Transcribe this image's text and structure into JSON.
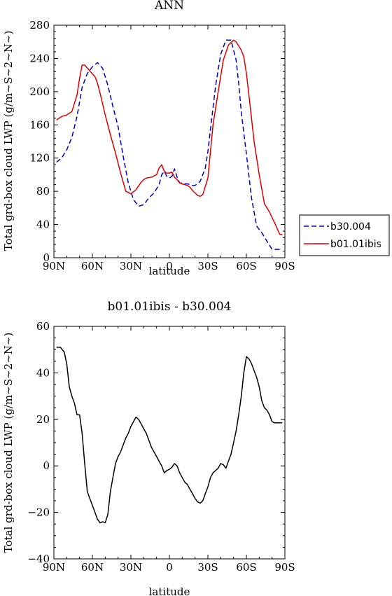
{
  "chart_data": [
    {
      "type": "line",
      "title": "ANN",
      "xlabel": "latitude",
      "ylabel": "Total grd-box cloud LWP (g/m~S~2~N~)",
      "xlim": [
        90,
        -90
      ],
      "ylim": [
        0,
        280
      ],
      "xticks": [
        90,
        60,
        30,
        0,
        -30,
        -60,
        -90
      ],
      "xtick_labels": [
        "90N",
        "60N",
        "30N",
        "0",
        "30S",
        "60S",
        "90S"
      ],
      "yticks": [
        0,
        40,
        80,
        120,
        160,
        200,
        240,
        280
      ],
      "ytick_labels": [
        "0",
        "40",
        "80",
        "120",
        "160",
        "200",
        "240",
        "280"
      ],
      "legend_position": "right",
      "series": [
        {
          "name": "b30.004",
          "color": "#0000cc",
          "style": "dashed",
          "x": [
            88,
            84,
            80,
            76,
            72,
            68,
            64,
            60,
            56,
            52,
            48,
            44,
            40,
            36,
            32,
            28,
            24,
            20,
            16,
            12,
            8,
            6,
            4,
            2,
            0,
            -2,
            -4,
            -6,
            -8,
            -10,
            -12,
            -14,
            -16,
            -18,
            -20,
            -24,
            -28,
            -30,
            -32,
            -36,
            -40,
            -44,
            -48,
            -52,
            -54,
            -56,
            -60,
            -64,
            -68,
            -72,
            -76,
            -80,
            -84,
            -88
          ],
          "y": [
            115,
            120,
            130,
            145,
            170,
            205,
            222,
            230,
            235,
            228,
            208,
            182,
            158,
            122,
            90,
            70,
            62,
            64,
            72,
            78,
            88,
            100,
            104,
            98,
            96,
            98,
            107,
            97,
            90,
            90,
            89,
            89,
            88,
            87,
            87,
            92,
            108,
            128,
            155,
            207,
            245,
            262,
            262,
            238,
            210,
            175,
            125,
            72,
            38,
            30,
            20,
            10,
            10,
            10
          ]
        },
        {
          "name": "b01.01ibis",
          "color": "#dd0000",
          "style": "solid",
          "x": [
            88,
            84,
            80,
            76,
            72,
            70,
            68,
            66,
            62,
            58,
            56,
            54,
            50,
            46,
            42,
            38,
            34,
            30,
            26,
            22,
            20,
            18,
            14,
            10,
            8,
            6,
            4,
            2,
            0,
            -2,
            -4,
            -6,
            -8,
            -10,
            -12,
            -14,
            -16,
            -18,
            -20,
            -22,
            -24,
            -26,
            -30,
            -34,
            -38,
            -42,
            -46,
            -50,
            -52,
            -54,
            -56,
            -58,
            -60,
            -62,
            -66,
            -70,
            -74,
            -78,
            -82,
            -86,
            -88
          ],
          "y": [
            166,
            170,
            172,
            176,
            196,
            216,
            232,
            232,
            225,
            218,
            210,
            198,
            172,
            148,
            126,
            102,
            80,
            77,
            82,
            91,
            94,
            96,
            97,
            100,
            108,
            112,
            104,
            102,
            102,
            103,
            97,
            94,
            90,
            89,
            88,
            87,
            85,
            81,
            78,
            75,
            74,
            76,
            96,
            160,
            200,
            238,
            256,
            262,
            260,
            255,
            250,
            242,
            222,
            195,
            140,
            100,
            65,
            55,
            42,
            28,
            28
          ]
        }
      ]
    },
    {
      "type": "line",
      "title": "b01.01ibis - b30.004",
      "xlabel": "latitude",
      "ylabel": "Total grd-box cloud LWP (g/m~S~2~N~)",
      "xlim": [
        90,
        -90
      ],
      "ylim": [
        -40,
        60
      ],
      "xticks": [
        90,
        60,
        30,
        0,
        -30,
        -60,
        -90
      ],
      "xtick_labels": [
        "90N",
        "60N",
        "30N",
        "0",
        "30S",
        "60S",
        "90S"
      ],
      "yticks": [
        -40,
        -20,
        0,
        20,
        40,
        60
      ],
      "ytick_labels": [
        "−40",
        "−20",
        "0",
        "20",
        "40",
        "60"
      ],
      "series": [
        {
          "color": "#000000",
          "style": "solid",
          "x": [
            88,
            85,
            82,
            80,
            78,
            76,
            74,
            72,
            70,
            68,
            66,
            64,
            62,
            60,
            58,
            56,
            54,
            52,
            50,
            48,
            46,
            44,
            42,
            40,
            38,
            36,
            34,
            32,
            30,
            28,
            26,
            24,
            22,
            20,
            18,
            16,
            14,
            12,
            10,
            8,
            6,
            4,
            2,
            0,
            -2,
            -4,
            -6,
            -8,
            -10,
            -12,
            -14,
            -16,
            -18,
            -20,
            -22,
            -24,
            -26,
            -28,
            -30,
            -32,
            -34,
            -36,
            -38,
            -40,
            -42,
            -44,
            -46,
            -48,
            -50,
            -52,
            -54,
            -56,
            -58,
            -60,
            -62,
            -64,
            -66,
            -68,
            -70,
            -72,
            -74,
            -76,
            -78,
            -80,
            -82,
            -84,
            -86,
            -88
          ],
          "y": [
            51,
            51,
            49,
            44,
            34,
            30,
            27,
            22,
            22,
            14,
            1,
            -11,
            -14,
            -17,
            -20,
            -23,
            -24.5,
            -24,
            -24.5,
            -21,
            -11,
            -5,
            1,
            4,
            6,
            9,
            12,
            14,
            17,
            19,
            21,
            20,
            18,
            16,
            14,
            11,
            8,
            6,
            4,
            2,
            0,
            -3,
            -2,
            -1.5,
            -0.5,
            1,
            0,
            -3,
            -5,
            -7,
            -8,
            -10,
            -12,
            -14,
            -15.5,
            -16,
            -15,
            -12,
            -9,
            -5,
            -3,
            -2,
            -1,
            1,
            0.5,
            -1,
            2,
            5,
            10,
            15,
            22,
            30,
            40,
            47,
            46,
            44,
            41,
            38,
            34,
            28,
            25,
            24,
            22,
            19,
            18.5,
            18.5,
            18.5,
            18.5
          ]
        }
      ]
    }
  ]
}
